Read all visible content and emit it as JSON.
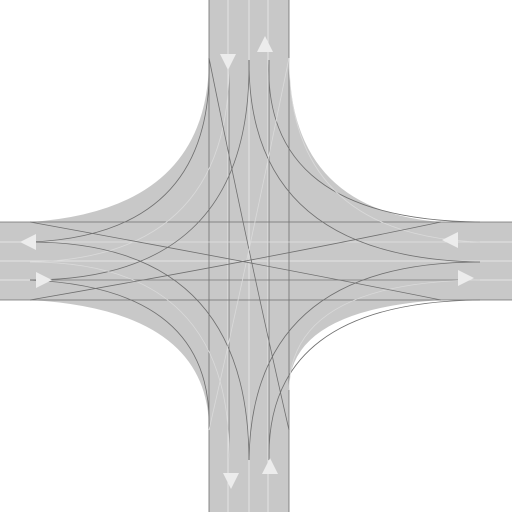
{
  "scene": {
    "type": "four-way intersection",
    "legs": [
      "north",
      "east",
      "south",
      "west"
    ],
    "lanes_per_direction": 1,
    "colors": {
      "background": "#ffffff",
      "road": "#c8c8c8",
      "lane_line": "#e4e4e4",
      "path_line": "#6f6f6f",
      "path_line_light": "#dadada",
      "arrow": "#ececec"
    }
  },
  "arrows": [
    {
      "leg": "north",
      "direction": "down-icon"
    },
    {
      "leg": "north",
      "direction": "up-icon"
    },
    {
      "leg": "south",
      "direction": "down-icon"
    },
    {
      "leg": "south",
      "direction": "up-icon"
    },
    {
      "leg": "west",
      "direction": "left-icon"
    },
    {
      "leg": "west",
      "direction": "right-icon"
    },
    {
      "leg": "east",
      "direction": "left-icon"
    },
    {
      "leg": "east",
      "direction": "right-icon"
    }
  ]
}
